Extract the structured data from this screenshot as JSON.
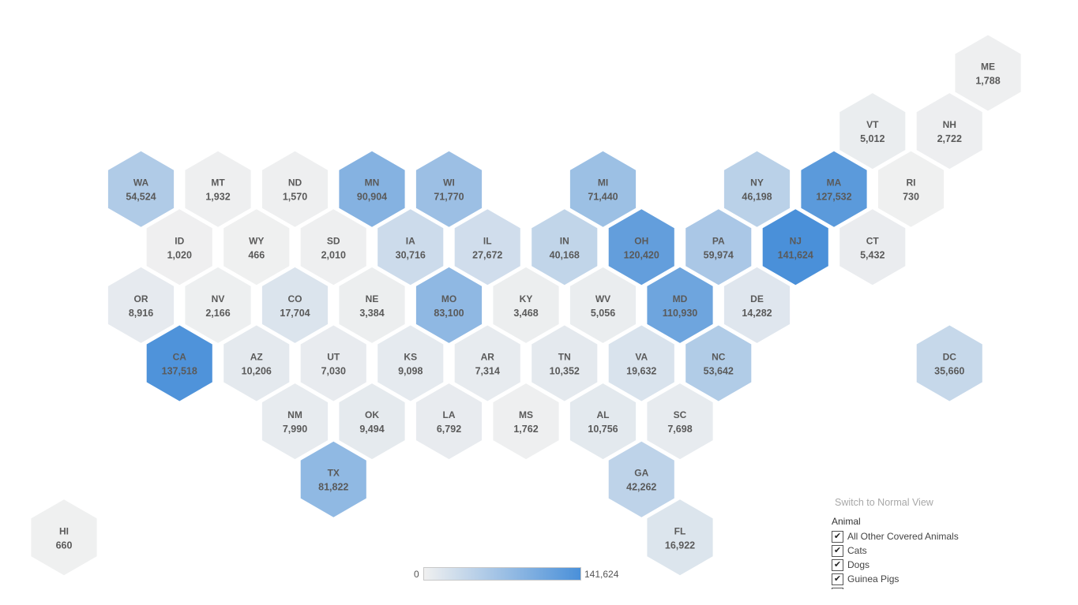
{
  "color_scale": {
    "min_value": 0,
    "max_value": 141624,
    "min_color": "#f0f0f0",
    "max_color": "#4a90d9",
    "min_label": "0",
    "max_label": "141,624"
  },
  "states": [
    {
      "abbr": "ME",
      "value": 1788,
      "value_label": "1,788",
      "row": 0,
      "col": 22
    },
    {
      "abbr": "VT",
      "value": 5012,
      "value_label": "5,012",
      "row": 1,
      "col": 19
    },
    {
      "abbr": "NH",
      "value": 2722,
      "value_label": "2,722",
      "row": 1,
      "col": 21
    },
    {
      "abbr": "WA",
      "value": 54524,
      "value_label": "54,524",
      "row": 2,
      "col": 0
    },
    {
      "abbr": "MT",
      "value": 1932,
      "value_label": "1,932",
      "row": 2,
      "col": 2
    },
    {
      "abbr": "ND",
      "value": 1570,
      "value_label": "1,570",
      "row": 2,
      "col": 4
    },
    {
      "abbr": "MN",
      "value": 90904,
      "value_label": "90,904",
      "row": 2,
      "col": 6
    },
    {
      "abbr": "WI",
      "value": 71770,
      "value_label": "71,770",
      "row": 2,
      "col": 8
    },
    {
      "abbr": "MI",
      "value": 71440,
      "value_label": "71,440",
      "row": 2,
      "col": 12
    },
    {
      "abbr": "NY",
      "value": 46198,
      "value_label": "46,198",
      "row": 2,
      "col": 16
    },
    {
      "abbr": "MA",
      "value": 127532,
      "value_label": "127,532",
      "row": 2,
      "col": 18
    },
    {
      "abbr": "RI",
      "value": 730,
      "value_label": "730",
      "row": 2,
      "col": 20
    },
    {
      "abbr": "ID",
      "value": 1020,
      "value_label": "1,020",
      "row": 3,
      "col": 1
    },
    {
      "abbr": "WY",
      "value": 466,
      "value_label": "466",
      "row": 3,
      "col": 3
    },
    {
      "abbr": "SD",
      "value": 2010,
      "value_label": "2,010",
      "row": 3,
      "col": 5
    },
    {
      "abbr": "IA",
      "value": 30716,
      "value_label": "30,716",
      "row": 3,
      "col": 7
    },
    {
      "abbr": "IL",
      "value": 27672,
      "value_label": "27,672",
      "row": 3,
      "col": 9
    },
    {
      "abbr": "IN",
      "value": 40168,
      "value_label": "40,168",
      "row": 3,
      "col": 11
    },
    {
      "abbr": "OH",
      "value": 120420,
      "value_label": "120,420",
      "row": 3,
      "col": 13
    },
    {
      "abbr": "PA",
      "value": 59974,
      "value_label": "59,974",
      "row": 3,
      "col": 15
    },
    {
      "abbr": "NJ",
      "value": 141624,
      "value_label": "141,624",
      "row": 3,
      "col": 17
    },
    {
      "abbr": "CT",
      "value": 5432,
      "value_label": "5,432",
      "row": 3,
      "col": 19
    },
    {
      "abbr": "OR",
      "value": 8916,
      "value_label": "8,916",
      "row": 4,
      "col": 0
    },
    {
      "abbr": "NV",
      "value": 2166,
      "value_label": "2,166",
      "row": 4,
      "col": 2
    },
    {
      "abbr": "CO",
      "value": 17704,
      "value_label": "17,704",
      "row": 4,
      "col": 4
    },
    {
      "abbr": "NE",
      "value": 3384,
      "value_label": "3,384",
      "row": 4,
      "col": 6
    },
    {
      "abbr": "MO",
      "value": 83100,
      "value_label": "83,100",
      "row": 4,
      "col": 8
    },
    {
      "abbr": "KY",
      "value": 3468,
      "value_label": "3,468",
      "row": 4,
      "col": 10
    },
    {
      "abbr": "WV",
      "value": 5056,
      "value_label": "5,056",
      "row": 4,
      "col": 12
    },
    {
      "abbr": "MD",
      "value": 110930,
      "value_label": "110,930",
      "row": 4,
      "col": 14
    },
    {
      "abbr": "DE",
      "value": 14282,
      "value_label": "14,282",
      "row": 4,
      "col": 16
    },
    {
      "abbr": "CA",
      "value": 137518,
      "value_label": "137,518",
      "row": 5,
      "col": 1
    },
    {
      "abbr": "AZ",
      "value": 10206,
      "value_label": "10,206",
      "row": 5,
      "col": 3
    },
    {
      "abbr": "UT",
      "value": 7030,
      "value_label": "7,030",
      "row": 5,
      "col": 5
    },
    {
      "abbr": "KS",
      "value": 9098,
      "value_label": "9,098",
      "row": 5,
      "col": 7
    },
    {
      "abbr": "AR",
      "value": 7314,
      "value_label": "7,314",
      "row": 5,
      "col": 9
    },
    {
      "abbr": "TN",
      "value": 10352,
      "value_label": "10,352",
      "row": 5,
      "col": 11
    },
    {
      "abbr": "VA",
      "value": 19632,
      "value_label": "19,632",
      "row": 5,
      "col": 13
    },
    {
      "abbr": "NC",
      "value": 53642,
      "value_label": "53,642",
      "row": 5,
      "col": 15
    },
    {
      "abbr": "DC",
      "value": 35660,
      "value_label": "35,660",
      "row": 5,
      "col": 21
    },
    {
      "abbr": "NM",
      "value": 7990,
      "value_label": "7,990",
      "row": 6,
      "col": 4
    },
    {
      "abbr": "OK",
      "value": 9494,
      "value_label": "9,494",
      "row": 6,
      "col": 6
    },
    {
      "abbr": "LA",
      "value": 6792,
      "value_label": "6,792",
      "row": 6,
      "col": 8
    },
    {
      "abbr": "MS",
      "value": 1762,
      "value_label": "1,762",
      "row": 6,
      "col": 10
    },
    {
      "abbr": "AL",
      "value": 10756,
      "value_label": "10,756",
      "row": 6,
      "col": 12
    },
    {
      "abbr": "SC",
      "value": 7698,
      "value_label": "7,698",
      "row": 6,
      "col": 14
    },
    {
      "abbr": "TX",
      "value": 81822,
      "value_label": "81,822",
      "row": 7,
      "col": 5
    },
    {
      "abbr": "GA",
      "value": 42262,
      "value_label": "42,262",
      "row": 7,
      "col": 13
    },
    {
      "abbr": "HI",
      "value": 660,
      "value_label": "660",
      "row": 8,
      "col": -2
    },
    {
      "abbr": "FL",
      "value": 16922,
      "value_label": "16,922",
      "row": 8,
      "col": 14
    }
  ],
  "controls": {
    "switch_view_label": "Switch to Normal View",
    "filter_title": "Animal",
    "filter_items": [
      {
        "label": "All Other Covered Animals",
        "checked": true
      },
      {
        "label": "Cats",
        "checked": true
      },
      {
        "label": "Dogs",
        "checked": true
      },
      {
        "label": "Guinea Pigs",
        "checked": true
      },
      {
        "label": "",
        "checked": true
      }
    ],
    "check_glyph": "✔"
  }
}
